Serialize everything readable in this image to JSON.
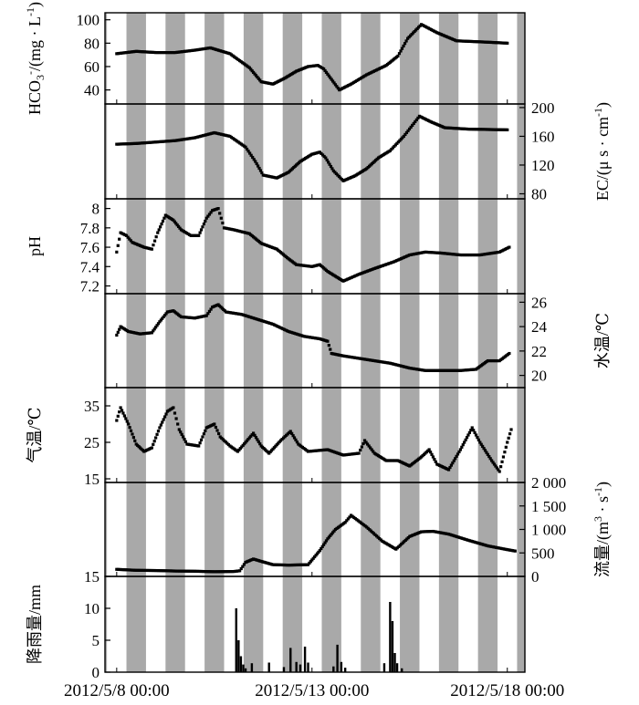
{
  "chart_data": {
    "type": "scatter",
    "x_tick_labels": [
      "2012/5/8 00:00",
      "2012/5/13 00:00",
      "2012/5/18 00:00"
    ],
    "x_tick_days": [
      0,
      5,
      10
    ],
    "x_range_days": [
      -0.3,
      10.45
    ],
    "shading": "alternating grey bands mark night-time, white bands day-time",
    "panels": [
      {
        "id": "hco3",
        "ylabel": "HCO3-/(mg·L-1)",
        "ylabel_parts": {
          "main": "HCO",
          "sub": "3",
          "sup": "-",
          "rest": "/(mg · L",
          "sup2": "-1",
          "close": ")"
        },
        "axis": "left",
        "ylim": [
          28,
          106
        ],
        "ticks": [
          40,
          60,
          80,
          100
        ],
        "series": [
          [
            0,
            71
          ],
          [
            0.5,
            73
          ],
          [
            1,
            72
          ],
          [
            1.5,
            72
          ],
          [
            2,
            74
          ],
          [
            2.4,
            76
          ],
          [
            2.9,
            71
          ],
          [
            3.4,
            59
          ],
          [
            3.7,
            47
          ],
          [
            4,
            45
          ],
          [
            4.3,
            50
          ],
          [
            4.6,
            56
          ],
          [
            4.9,
            60
          ],
          [
            5.15,
            61
          ],
          [
            5.3,
            58
          ],
          [
            5.5,
            49
          ],
          [
            5.7,
            40
          ],
          [
            6,
            45
          ],
          [
            6.4,
            53
          ],
          [
            6.9,
            61
          ],
          [
            7.2,
            69
          ],
          [
            7.45,
            84
          ],
          [
            7.8,
            96
          ],
          [
            8.2,
            89
          ],
          [
            8.7,
            82
          ],
          [
            9.4,
            81
          ],
          [
            10,
            80
          ]
        ]
      },
      {
        "id": "ec",
        "ylabel": "EC/(μs·cm-1)",
        "ylabel_parts": {
          "main": "EC/(μ s · cm",
          "sup": "-1",
          "close": ")"
        },
        "axis": "right",
        "ylim": [
          73,
          205
        ],
        "ticks": [
          80,
          120,
          160,
          200
        ],
        "series": [
          [
            0,
            149
          ],
          [
            0.5,
            150
          ],
          [
            1,
            152
          ],
          [
            1.5,
            154
          ],
          [
            2,
            158
          ],
          [
            2.5,
            165
          ],
          [
            2.9,
            160
          ],
          [
            3.3,
            145
          ],
          [
            3.55,
            125
          ],
          [
            3.75,
            106
          ],
          [
            4.1,
            102
          ],
          [
            4.4,
            110
          ],
          [
            4.7,
            125
          ],
          [
            5,
            135
          ],
          [
            5.2,
            138
          ],
          [
            5.35,
            130
          ],
          [
            5.55,
            112
          ],
          [
            5.8,
            98
          ],
          [
            6.1,
            105
          ],
          [
            6.4,
            115
          ],
          [
            6.7,
            130
          ],
          [
            7,
            140
          ],
          [
            7.35,
            160
          ],
          [
            7.75,
            188
          ],
          [
            8.05,
            180
          ],
          [
            8.4,
            172
          ],
          [
            9,
            170
          ],
          [
            10,
            169
          ]
        ]
      },
      {
        "id": "ph",
        "ylabel": "pH",
        "axis": "left",
        "ylim": [
          7.12,
          8.1
        ],
        "ticks": [
          7.2,
          7.4,
          7.6,
          7.8,
          8.0
        ],
        "series": [
          [
            0,
            7.55
          ],
          [
            0.1,
            7.75
          ],
          [
            0.25,
            7.72
          ],
          [
            0.4,
            7.65
          ],
          [
            0.7,
            7.6
          ],
          [
            0.9,
            7.58
          ],
          [
            1.05,
            7.75
          ],
          [
            1.25,
            7.93
          ],
          [
            1.45,
            7.88
          ],
          [
            1.65,
            7.78
          ],
          [
            1.9,
            7.72
          ],
          [
            2.1,
            7.72
          ],
          [
            2.3,
            7.9
          ],
          [
            2.45,
            7.98
          ],
          [
            2.6,
            8.0
          ],
          [
            2.75,
            7.8
          ],
          [
            3,
            7.78
          ],
          [
            3.4,
            7.74
          ],
          [
            3.7,
            7.64
          ],
          [
            4.1,
            7.58
          ],
          [
            4.4,
            7.48
          ],
          [
            4.6,
            7.42
          ],
          [
            5,
            7.4
          ],
          [
            5.2,
            7.42
          ],
          [
            5.4,
            7.35
          ],
          [
            5.6,
            7.3
          ],
          [
            5.8,
            7.25
          ],
          [
            6.2,
            7.32
          ],
          [
            6.6,
            7.38
          ],
          [
            7.1,
            7.45
          ],
          [
            7.5,
            7.52
          ],
          [
            7.9,
            7.55
          ],
          [
            8.3,
            7.54
          ],
          [
            8.8,
            7.52
          ],
          [
            9.3,
            7.52
          ],
          [
            9.8,
            7.55
          ],
          [
            10.05,
            7.6
          ]
        ]
      },
      {
        "id": "water_temp",
        "ylabel": "水温/℃",
        "axis": "right",
        "ylim": [
          19,
          26.7
        ],
        "ticks": [
          20,
          22,
          24,
          26
        ],
        "series": [
          [
            0,
            23.3
          ],
          [
            0.1,
            24
          ],
          [
            0.3,
            23.6
          ],
          [
            0.6,
            23.4
          ],
          [
            0.9,
            23.5
          ],
          [
            1.1,
            24.4
          ],
          [
            1.3,
            25.2
          ],
          [
            1.45,
            25.3
          ],
          [
            1.65,
            24.8
          ],
          [
            2,
            24.7
          ],
          [
            2.3,
            24.9
          ],
          [
            2.45,
            25.6
          ],
          [
            2.6,
            25.8
          ],
          [
            2.8,
            25.2
          ],
          [
            3.2,
            25
          ],
          [
            3.6,
            24.6
          ],
          [
            4,
            24.2
          ],
          [
            4.4,
            23.6
          ],
          [
            4.8,
            23.2
          ],
          [
            5.2,
            23
          ],
          [
            5.4,
            22.8
          ],
          [
            5.5,
            21.8
          ],
          [
            5.8,
            21.6
          ],
          [
            6.2,
            21.4
          ],
          [
            6.6,
            21.2
          ],
          [
            7,
            21
          ],
          [
            7.5,
            20.6
          ],
          [
            7.9,
            20.4
          ],
          [
            8.4,
            20.4
          ],
          [
            8.8,
            20.4
          ],
          [
            9.2,
            20.5
          ],
          [
            9.5,
            21.2
          ],
          [
            9.8,
            21.2
          ],
          [
            10.05,
            21.8
          ]
        ]
      },
      {
        "id": "air_temp",
        "ylabel": "气温/℃",
        "axis": "left",
        "ylim": [
          14,
          40
        ],
        "ticks": [
          15,
          25,
          35
        ],
        "series": [
          [
            0,
            31
          ],
          [
            0.1,
            34.5
          ],
          [
            0.3,
            30
          ],
          [
            0.5,
            24.5
          ],
          [
            0.7,
            22.5
          ],
          [
            0.9,
            23.5
          ],
          [
            1.1,
            29
          ],
          [
            1.3,
            33.5
          ],
          [
            1.45,
            34.5
          ],
          [
            1.6,
            28.5
          ],
          [
            1.8,
            24.5
          ],
          [
            2.1,
            24
          ],
          [
            2.3,
            29
          ],
          [
            2.5,
            30
          ],
          [
            2.65,
            26.5
          ],
          [
            2.9,
            24
          ],
          [
            3.1,
            22.5
          ],
          [
            3.3,
            25
          ],
          [
            3.5,
            27.5
          ],
          [
            3.7,
            24
          ],
          [
            3.9,
            22
          ],
          [
            4.2,
            25.5
          ],
          [
            4.45,
            28
          ],
          [
            4.65,
            24.5
          ],
          [
            4.9,
            22.5
          ],
          [
            5.4,
            23
          ],
          [
            5.8,
            21.5
          ],
          [
            6.2,
            22
          ],
          [
            6.35,
            25.5
          ],
          [
            6.6,
            22
          ],
          [
            6.9,
            20
          ],
          [
            7.2,
            20
          ],
          [
            7.5,
            18.5
          ],
          [
            7.8,
            21
          ],
          [
            8,
            23
          ],
          [
            8.2,
            19
          ],
          [
            8.5,
            17.5
          ],
          [
            8.8,
            23
          ],
          [
            9.1,
            29
          ],
          [
            9.3,
            25
          ],
          [
            9.6,
            20
          ],
          [
            9.8,
            17
          ],
          [
            10,
            25
          ],
          [
            10.1,
            28.5
          ]
        ]
      },
      {
        "id": "discharge",
        "ylabel": "流量/(m3·s-1)",
        "ylabel_parts": {
          "main": "流量/(m",
          "sup": "3",
          "mid": " · s",
          "sup2": "-1",
          "close": ")"
        },
        "axis": "right",
        "ylim": [
          0,
          2000
        ],
        "ticks": [
          0,
          500,
          1000,
          1500,
          2000
        ],
        "tick_labels": [
          "0",
          "500",
          "1 000",
          "1 500",
          "2 000"
        ],
        "series": [
          [
            0,
            150
          ],
          [
            0.5,
            130
          ],
          [
            1,
            125
          ],
          [
            1.5,
            115
          ],
          [
            2,
            110
          ],
          [
            2.5,
            100
          ],
          [
            3,
            105
          ],
          [
            3.15,
            120
          ],
          [
            3.3,
            300
          ],
          [
            3.5,
            370
          ],
          [
            3.7,
            320
          ],
          [
            4,
            250
          ],
          [
            4.4,
            240
          ],
          [
            4.9,
            250
          ],
          [
            5.2,
            550
          ],
          [
            5.4,
            800
          ],
          [
            5.6,
            1000
          ],
          [
            5.85,
            1150
          ],
          [
            6,
            1300
          ],
          [
            6.4,
            1050
          ],
          [
            6.8,
            750
          ],
          [
            7.15,
            580
          ],
          [
            7.5,
            850
          ],
          [
            7.8,
            950
          ],
          [
            8.1,
            960
          ],
          [
            8.5,
            900
          ],
          [
            9,
            770
          ],
          [
            9.5,
            650
          ],
          [
            10,
            570
          ],
          [
            10.2,
            540
          ]
        ]
      },
      {
        "id": "rain",
        "ylabel": "降雨量/mm",
        "axis": "left",
        "ylim": [
          0,
          15
        ],
        "ticks": [
          0,
          5,
          10,
          15
        ],
        "bars": [
          [
            3.06,
            10
          ],
          [
            3.12,
            5
          ],
          [
            3.18,
            2.5
          ],
          [
            3.24,
            1.2
          ],
          [
            3.3,
            0.6
          ],
          [
            3.46,
            1.4
          ],
          [
            3.9,
            1.5
          ],
          [
            4.28,
            0.8
          ],
          [
            4.45,
            3.8
          ],
          [
            4.6,
            1.6
          ],
          [
            4.7,
            1.2
          ],
          [
            4.82,
            4
          ],
          [
            4.9,
            1.5
          ],
          [
            5.55,
            0.9
          ],
          [
            5.65,
            4.3
          ],
          [
            5.75,
            1.6
          ],
          [
            5.85,
            0.7
          ],
          [
            6.85,
            1.4
          ],
          [
            7.0,
            11
          ],
          [
            7.06,
            8
          ],
          [
            7.12,
            3
          ],
          [
            7.18,
            1.4
          ],
          [
            7.3,
            0.6
          ]
        ]
      }
    ]
  }
}
